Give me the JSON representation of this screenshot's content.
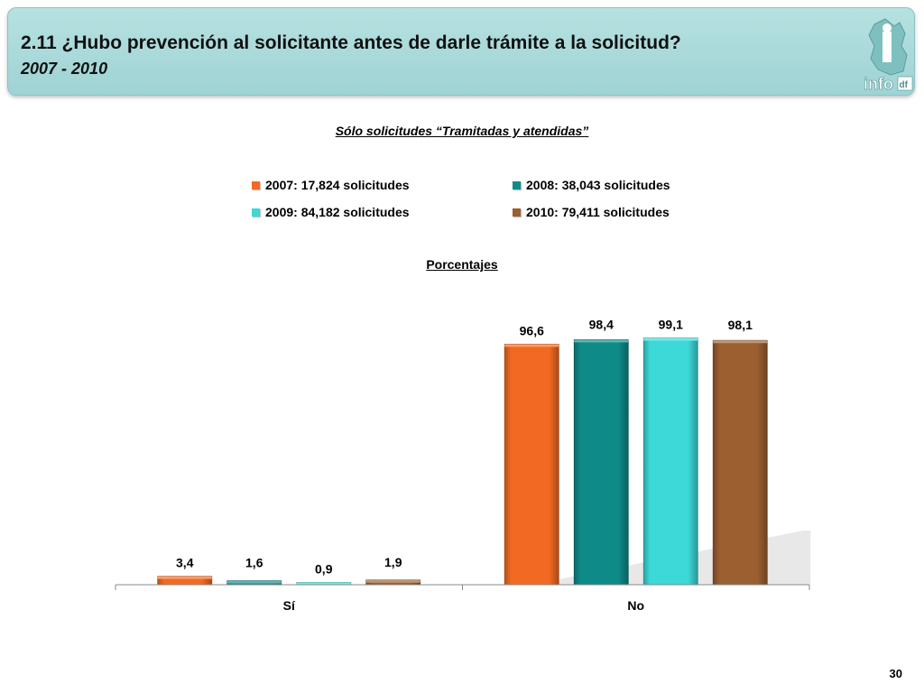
{
  "header": {
    "title": "2.11 ¿Hubo prevención al solicitante antes de darle trámite a la solicitud?",
    "subtitle": "2007 - 2010",
    "logo_text": "info",
    "logo_suffix": "df"
  },
  "section_title": "Sólo solicitudes “Tramitadas y atendidas”",
  "units_label": "Porcentajes",
  "page_number": "30",
  "colors": {
    "header_bg": "#a9dbdb",
    "s2007": "#f26a22",
    "s2008": "#0e8b89",
    "s2009": "#3dd8d8",
    "s2010": "#9b5f30"
  },
  "chart_data": {
    "type": "bar",
    "title": "Sólo solicitudes “Tramitadas y atendidas”",
    "ylabel": "Porcentajes",
    "categories": [
      "Sí",
      "No"
    ],
    "series": [
      {
        "name": "2007: 17,824 solicitudes",
        "values": [
          3.4,
          96.6
        ],
        "labels": [
          "3,4",
          "96,6"
        ],
        "color": "#f26a22"
      },
      {
        "name": "2008: 38,043 solicitudes",
        "values": [
          1.6,
          98.4
        ],
        "labels": [
          "1,6",
          "98,4"
        ],
        "color": "#0e8b89"
      },
      {
        "name": "2009: 84,182 solicitudes",
        "values": [
          0.9,
          99.1
        ],
        "labels": [
          "0,9",
          "99,1"
        ],
        "color": "#3dd8d8"
      },
      {
        "name": "2010: 79,411 solicitudes",
        "values": [
          1.9,
          98.1
        ],
        "labels": [
          "1,9",
          "98,1"
        ],
        "color": "#9b5f30"
      }
    ],
    "ylim": [
      0,
      100
    ],
    "grid": false,
    "legend_position": "top"
  }
}
